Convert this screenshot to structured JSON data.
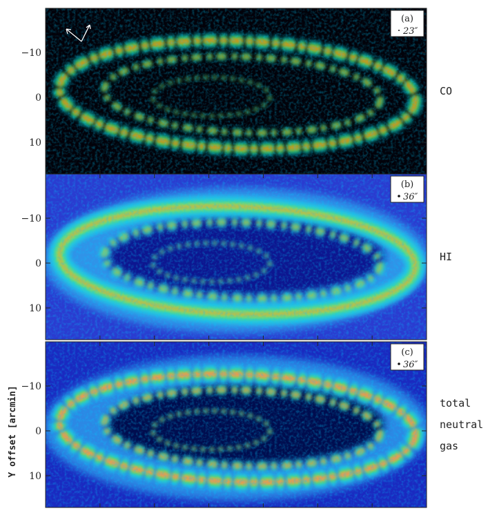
{
  "figure": {
    "y_axis_label": "Y offset [arcmin]",
    "panels": [
      {
        "tag": "(a)",
        "beam": "23″",
        "label_lines": [
          "CO"
        ],
        "yticks": [
          "−10",
          "0",
          "10"
        ]
      },
      {
        "tag": "(b)",
        "beam": "36″",
        "label_lines": [
          "HI"
        ],
        "yticks": [
          "−10",
          "0",
          "10"
        ]
      },
      {
        "tag": "(c)",
        "beam": "36″",
        "label_lines": [
          "total",
          "neutral",
          "gas"
        ],
        "yticks": [
          "−10",
          "0",
          "10"
        ]
      }
    ]
  }
}
